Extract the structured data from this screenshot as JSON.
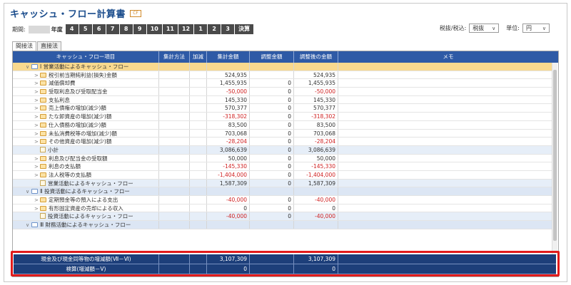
{
  "title": "キャッシュ・フロー計算書",
  "badge": "CF",
  "period": {
    "label": "期間:",
    "year_suffix": "年度",
    "months": [
      "4",
      "5",
      "6",
      "7",
      "8",
      "9",
      "10",
      "11",
      "12",
      "1",
      "2",
      "3",
      "決算"
    ]
  },
  "controls": {
    "tax_label": "税抜/税込:",
    "tax_value": "税抜",
    "unit_label": "単位:",
    "unit_value": "円"
  },
  "tabs": [
    "間接法",
    "直接法"
  ],
  "columns": [
    "キャッシュ・フロー項目",
    "集計方法",
    "加減",
    "集計金額",
    "調整金額",
    "調整後の金額",
    "メモ"
  ],
  "rows": [
    {
      "type": "section-first",
      "label": "Ⅰ 営業活動によるキャッシュ・フロー",
      "amt": "",
      "adj": "",
      "after": ""
    },
    {
      "type": "item",
      "label": "税引前当期純利益(損失)金額",
      "amt": "524,935",
      "adj": "",
      "after": "524,935"
    },
    {
      "type": "item",
      "label": "減価償却費",
      "amt": "1,455,935",
      "adj": "0",
      "after": "1,455,935"
    },
    {
      "type": "item",
      "label": "受取利息及び受取配当金",
      "amt": "-50,000",
      "adj": "0",
      "after": "-50,000",
      "neg": true
    },
    {
      "type": "item",
      "label": "支払利息",
      "amt": "145,330",
      "adj": "0",
      "after": "145,330"
    },
    {
      "type": "item",
      "label": "売上債権の増加(減少)額",
      "amt": "570,377",
      "adj": "0",
      "after": "570,377"
    },
    {
      "type": "item",
      "label": "たな卸資産の増加(減少)額",
      "amt": "-318,302",
      "adj": "0",
      "after": "-318,302",
      "neg": true
    },
    {
      "type": "item",
      "label": "仕入債務の増加(減少)額",
      "amt": "83,500",
      "adj": "0",
      "after": "83,500"
    },
    {
      "type": "item",
      "label": "未払消費税等の増加(減少)額",
      "amt": "703,068",
      "adj": "0",
      "after": "703,068"
    },
    {
      "type": "item",
      "label": "その他資産の増加(減少)額",
      "amt": "-28,204",
      "adj": "0",
      "after": "-28,204",
      "neg": true
    },
    {
      "type": "sub",
      "label": "小計",
      "amt": "3,086,639",
      "adj": "0",
      "after": "3,086,639"
    },
    {
      "type": "item",
      "label": "利息及び配当金の受取額",
      "amt": "50,000",
      "adj": "0",
      "after": "50,000"
    },
    {
      "type": "item",
      "label": "利息の支払額",
      "amt": "-145,330",
      "adj": "0",
      "after": "-145,330",
      "neg": true
    },
    {
      "type": "item",
      "label": "法人税等の支払額",
      "amt": "-1,404,000",
      "adj": "0",
      "after": "-1,404,000",
      "neg": true
    },
    {
      "type": "sub",
      "label": "営業活動によるキャッシュ・フロー",
      "amt": "1,587,309",
      "adj": "0",
      "after": "1,587,309"
    },
    {
      "type": "section",
      "label": "Ⅱ 投資活動によるキャッシュ・フロー",
      "amt": "",
      "adj": "",
      "after": ""
    },
    {
      "type": "item",
      "label": "定期預金等の預入による支出",
      "amt": "-40,000",
      "adj": "0",
      "after": "-40,000",
      "neg": true
    },
    {
      "type": "item",
      "label": "有形固定資産の売却による収入",
      "amt": "0",
      "adj": "0",
      "after": "0"
    },
    {
      "type": "sub",
      "label": "投資活動によるキャッシュ・フロー",
      "amt": "-40,000",
      "adj": "0",
      "after": "-40,000",
      "neg": true
    },
    {
      "type": "section",
      "label": "Ⅲ 財務活動によるキャッシュ・フロー",
      "amt": "",
      "adj": "",
      "after": ""
    }
  ],
  "footer": [
    {
      "label": "現金及び現金同等物の増減額(Ⅶ－Ⅵ)",
      "amt": "3,107,309",
      "after": "3,107,309"
    },
    {
      "label": "検算(増減額－Ⅴ)",
      "amt": "0",
      "after": "0"
    }
  ]
}
